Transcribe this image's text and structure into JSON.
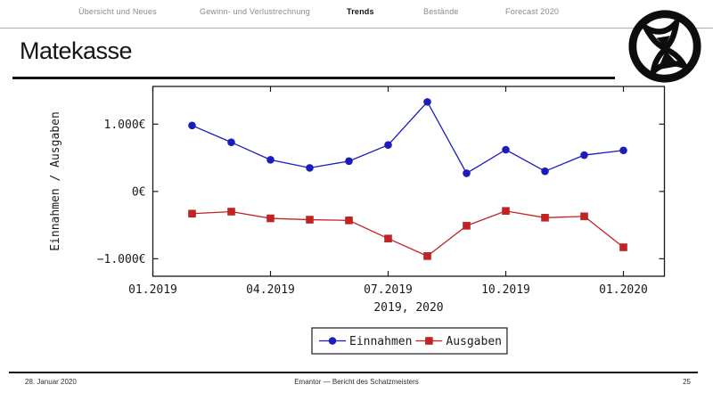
{
  "slide": {
    "title": "Matekasse",
    "footer_date": "28. Januar 2020",
    "footer_center": "Emantor — Bericht des Schatzmeisters",
    "page_number": "25"
  },
  "nav": {
    "items": [
      {
        "label": "Übersicht und Neues",
        "active": false
      },
      {
        "label": "Gewinn- und Verlustrechnung",
        "active": false
      },
      {
        "label": "Trends",
        "active": true
      },
      {
        "label": "Bestände",
        "active": false
      },
      {
        "label": "Forecast 2020",
        "active": false
      }
    ]
  },
  "logo": {
    "name": "hourglass-emblem"
  },
  "colors": {
    "einnahmen_blue": "#1c1cbe",
    "ausgaben_red": "#c32222",
    "text_black": "#1a1a1a",
    "nav_gray": "#8a8a8a"
  },
  "chart_data": {
    "type": "line",
    "title": "",
    "xlabel": "2019, 2020",
    "ylabel": "Einnahmen / Ausgaben",
    "x_months": [
      "02.2019",
      "03.2019",
      "04.2019",
      "05.2019",
      "06.2019",
      "07.2019",
      "08.2019",
      "09.2019",
      "10.2019",
      "11.2019",
      "12.2019",
      "01.2020"
    ],
    "x_tick_labels": [
      "01.2019",
      "04.2019",
      "07.2019",
      "10.2019",
      "01.2020"
    ],
    "x_tick_positions": [
      0,
      3,
      6,
      9,
      12
    ],
    "y_ticks": [
      {
        "value": 1000,
        "label": "1.000€"
      },
      {
        "value": 0,
        "label": "0€"
      },
      {
        "value": -1000,
        "label": "−1.000€"
      }
    ],
    "ylim": [
      -1260,
      1560
    ],
    "grid": false,
    "legend_position": "bottom",
    "series": [
      {
        "name": "Einnahmen",
        "marker": "circle",
        "color": "#1c1cbe",
        "values": [
          980,
          730,
          470,
          350,
          450,
          690,
          1330,
          270,
          620,
          300,
          540,
          610
        ]
      },
      {
        "name": "Ausgaben",
        "marker": "square",
        "color": "#c32222",
        "values": [
          -330,
          -300,
          -400,
          -420,
          -430,
          -700,
          -960,
          -510,
          -290,
          -390,
          -370,
          -830
        ]
      }
    ]
  }
}
